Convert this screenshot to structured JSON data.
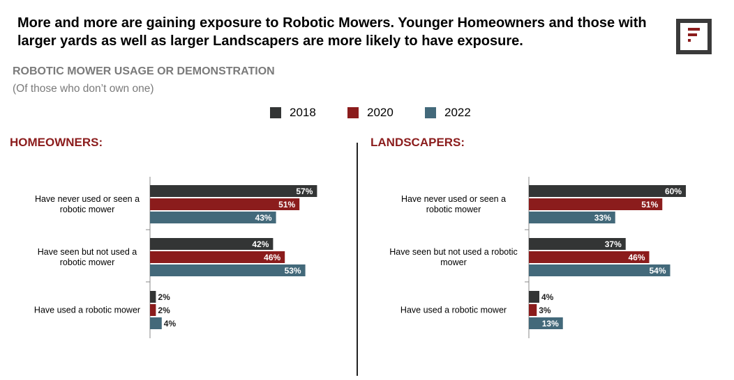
{
  "headline": "More and more are gaining exposure to Robotic Mowers.  Younger Homeowners and those with larger yards as well as larger Landscapers are more likely to have exposure.",
  "subtitle": "ROBOTIC MOWER USAGE OR DEMONSTRATION",
  "subnote": "(Of those who don’t own one)",
  "colors": {
    "s2018": "#333535",
    "s2020": "#8b1c1c",
    "s2022": "#43697a",
    "accent": "#8b1c1c"
  },
  "legend": [
    "2018",
    "2020",
    "2022"
  ],
  "chart_data": [
    {
      "type": "bar",
      "orientation": "horizontal",
      "title": "HOMEOWNERS:",
      "categories": [
        "Have never used or seen a robotic mower",
        "Have seen but not used a robotic mower",
        "Have used a robotic mower"
      ],
      "series": [
        {
          "name": "2018",
          "values": [
            57,
            42,
            2
          ]
        },
        {
          "name": "2020",
          "values": [
            51,
            46,
            2
          ]
        },
        {
          "name": "2022",
          "values": [
            43,
            53,
            4
          ]
        }
      ],
      "value_format": "percent",
      "xlim": [
        0,
        100
      ],
      "grid": false
    },
    {
      "type": "bar",
      "orientation": "horizontal",
      "title": "LANDSCAPERS:",
      "categories": [
        "Have never used or seen a robotic mower",
        "Have seen but not used a robotic mower",
        "Have used a robotic mower"
      ],
      "series": [
        {
          "name": "2018",
          "values": [
            60,
            37,
            4
          ]
        },
        {
          "name": "2020",
          "values": [
            51,
            46,
            3
          ]
        },
        {
          "name": "2022",
          "values": [
            33,
            54,
            13
          ]
        }
      ],
      "value_format": "percent",
      "xlim": [
        0,
        100
      ],
      "grid": false
    }
  ]
}
